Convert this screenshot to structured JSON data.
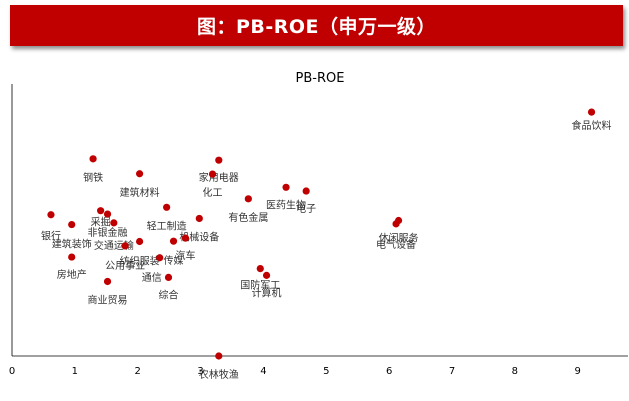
{
  "header": {
    "title": "图：PB-ROE（申万一级）"
  },
  "colors": {
    "banner": "#c00000",
    "point": "#c00000",
    "axis": "#000000"
  },
  "chart_data": {
    "type": "scatter",
    "title": "PB-ROE",
    "xlabel": "",
    "ylabel": "",
    "xlim": [
      0,
      9.8
    ],
    "ylim": [
      0,
      8
    ],
    "x_ticks": [
      "0",
      "1",
      "2",
      "3",
      "4",
      "5",
      "6",
      "7",
      "8",
      "9"
    ],
    "grid": false,
    "legend": "none",
    "points": [
      {
        "label": "食品饮料",
        "x": 9.22,
        "y": 7.2
      },
      {
        "label": "钢铁",
        "x": 1.29,
        "y": 5.82
      },
      {
        "label": "家用电器",
        "x": 3.29,
        "y": 5.78
      },
      {
        "label": "建筑材料",
        "x": 2.03,
        "y": 5.38
      },
      {
        "label": "化工",
        "x": 3.19,
        "y": 5.37
      },
      {
        "label": "医药生物",
        "x": 4.36,
        "y": 4.98
      },
      {
        "label": "电子",
        "x": 4.68,
        "y": 4.87
      },
      {
        "label": "有色金属",
        "x": 3.76,
        "y": 4.64
      },
      {
        "label": "轻工制造",
        "x": 2.46,
        "y": 4.39
      },
      {
        "label": "银行",
        "x": 0.62,
        "y": 4.17
      },
      {
        "label": "采掘",
        "x": 1.41,
        "y": 4.29
      },
      {
        "label": "非银金融",
        "x": 1.52,
        "y": 4.19
      },
      {
        "label": "机械设备",
        "x": 2.98,
        "y": 4.06
      },
      {
        "label": "建筑装饰",
        "x": 0.95,
        "y": 3.88
      },
      {
        "label": "交通运输",
        "x": 1.62,
        "y": 3.93
      },
      {
        "label": "休闲服务",
        "x": 6.15,
        "y": 4.0
      },
      {
        "label": "电气设备",
        "x": 6.11,
        "y": 3.9
      },
      {
        "label": "传媒",
        "x": 2.57,
        "y": 3.39
      },
      {
        "label": "纺织服装",
        "x": 2.03,
        "y": 3.38
      },
      {
        "label": "汽车",
        "x": 2.76,
        "y": 3.48
      },
      {
        "label": "公用事业",
        "x": 1.8,
        "y": 3.25
      },
      {
        "label": "房地产",
        "x": 0.95,
        "y": 2.92
      },
      {
        "label": "通信",
        "x": 2.35,
        "y": 2.9
      },
      {
        "label": "国防军工",
        "x": 3.95,
        "y": 2.58
      },
      {
        "label": "计算机",
        "x": 4.05,
        "y": 2.38
      },
      {
        "label": "商业贸易",
        "x": 1.52,
        "y": 2.2
      },
      {
        "label": "综合",
        "x": 2.49,
        "y": 2.32
      },
      {
        "label": "农林牧渔",
        "x": 3.29,
        "y": 0.0
      }
    ]
  }
}
